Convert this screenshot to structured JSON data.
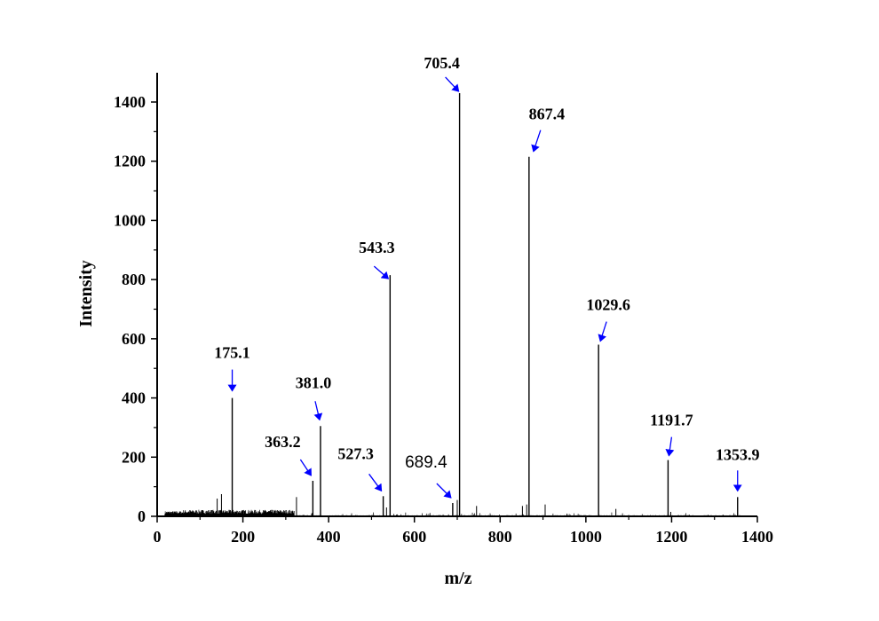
{
  "chart_data": {
    "type": "line",
    "title": "",
    "xlabel": "m/z",
    "ylabel": "Intensity",
    "xlim": [
      0,
      1400
    ],
    "ylim": [
      0,
      1500
    ],
    "x_ticks": [
      0,
      200,
      400,
      600,
      800,
      1000,
      1200,
      1400
    ],
    "y_ticks": [
      0,
      200,
      400,
      600,
      800,
      1000,
      1200,
      1400
    ],
    "x_tick_labels": [
      "0",
      "200",
      "400",
      "600",
      "800",
      "1000",
      "1200",
      "1400"
    ],
    "y_tick_labels": [
      "0",
      "200",
      "400",
      "600",
      "800",
      "1000",
      "1200",
      "1400"
    ],
    "peaks": [
      {
        "mz": 175.1,
        "intensity": 400
      },
      {
        "mz": 363.2,
        "intensity": 120
      },
      {
        "mz": 381.0,
        "intensity": 305
      },
      {
        "mz": 527.3,
        "intensity": 68
      },
      {
        "mz": 543.3,
        "intensity": 815
      },
      {
        "mz": 689.4,
        "intensity": 45
      },
      {
        "mz": 705.4,
        "intensity": 1430
      },
      {
        "mz": 867.4,
        "intensity": 1215
      },
      {
        "mz": 1029.6,
        "intensity": 580
      },
      {
        "mz": 1191.7,
        "intensity": 190
      },
      {
        "mz": 1353.9,
        "intensity": 65
      }
    ],
    "minor_peaks": [
      {
        "mz": 140,
        "intensity": 60
      },
      {
        "mz": 150,
        "intensity": 75
      },
      {
        "mz": 325,
        "intensity": 65
      },
      {
        "mz": 535,
        "intensity": 30
      },
      {
        "mz": 700,
        "intensity": 55
      },
      {
        "mz": 745,
        "intensity": 35
      },
      {
        "mz": 852,
        "intensity": 35
      },
      {
        "mz": 862,
        "intensity": 40
      },
      {
        "mz": 905,
        "intensity": 40
      },
      {
        "mz": 1070,
        "intensity": 25
      },
      {
        "mz": 1198,
        "intensity": 15
      }
    ],
    "annotations": [
      {
        "label": "175.1",
        "mz": 175.1,
        "style": "bold"
      },
      {
        "label": "363.2",
        "mz": 363.2,
        "style": "bold"
      },
      {
        "label": "381.0",
        "mz": 381.0,
        "style": "bold"
      },
      {
        "label": "527.3",
        "mz": 527.3,
        "style": "bold"
      },
      {
        "label": "543.3",
        "mz": 543.3,
        "style": "bold"
      },
      {
        "label": "689.4",
        "mz": 689.4,
        "style": "sans"
      },
      {
        "label": "705.4",
        "mz": 705.4,
        "style": "bold"
      },
      {
        "label": "867.4",
        "mz": 867.4,
        "style": "bold"
      },
      {
        "label": "1029.6",
        "mz": 1029.6,
        "style": "bold"
      },
      {
        "label": "1191.7",
        "mz": 1191.7,
        "style": "bold"
      },
      {
        "label": "1353.9",
        "mz": 1353.9,
        "style": "bold"
      }
    ],
    "arrow_color": "#0000ff",
    "line_color": "#000000"
  }
}
